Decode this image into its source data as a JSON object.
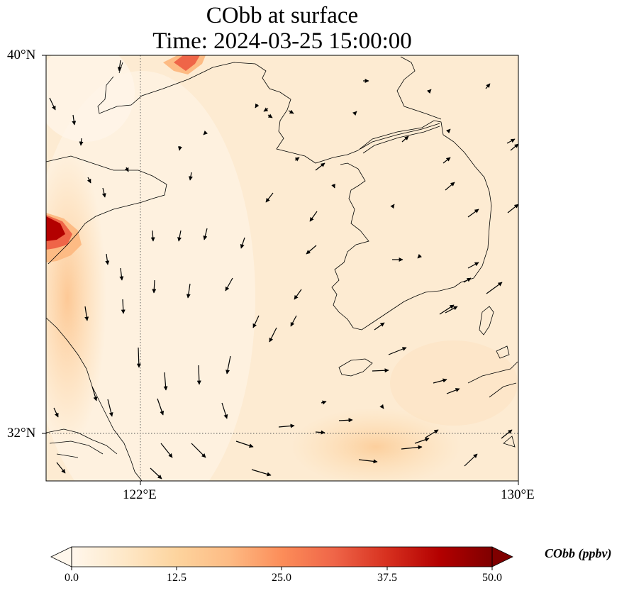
{
  "title": {
    "line1": "CObb at surface",
    "line2": "Time: 2024-03-25 15:00:00"
  },
  "map": {
    "lat_range": [
      31,
      40
    ],
    "lon_range": [
      120,
      130
    ],
    "lat_ticks": [
      {
        "value": 40,
        "label": "40°N"
      },
      {
        "value": 32,
        "label": "32°N"
      }
    ],
    "lon_ticks": [
      {
        "value": 122,
        "label": "122°E"
      },
      {
        "value": 130,
        "label": "130°E"
      }
    ],
    "gridlines": "dotted at 32°N and 122°E",
    "field": "CObb",
    "field_units": "ppbv",
    "field_description": "mostly light cream (0–10 ppbv) with hot spots along the northwest coast near 34.5°N and at 39.9°N, 123°E",
    "overlay": "wind vectors (black arrows)",
    "coastlines": true
  },
  "colorbar": {
    "label": "CObb (ppbv)",
    "ticks": [
      "0.0",
      "12.5",
      "25.0",
      "37.5",
      "50.0"
    ],
    "range": [
      0,
      50
    ],
    "extend": "both",
    "colormap": "OrRd",
    "stops": [
      "#fff7ec",
      "#fee8c8",
      "#fdd49e",
      "#fdbb84",
      "#fc8d59",
      "#ef6548",
      "#d7301f",
      "#b30000",
      "#7f0000"
    ]
  }
}
